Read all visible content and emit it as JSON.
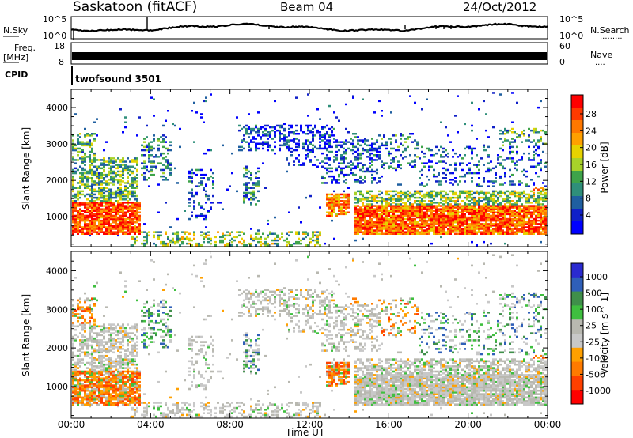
{
  "header": {
    "station": "Saskatoon (fitACF)",
    "beam": "Beam 04",
    "date": "24/Oct/2012"
  },
  "noise_panel": {
    "left_label": "N.Sky",
    "right_label": "N.Search",
    "right_dots": ".........",
    "left_ticks": [
      {
        "base": "10",
        "exp": "^5"
      },
      {
        "base": "10",
        "exp": "^0"
      }
    ],
    "right_ticks": [
      {
        "base": "10",
        "exp": "^5"
      },
      {
        "base": "10",
        "exp": "^0"
      }
    ]
  },
  "freq_panel": {
    "left_label_1": "Freq.",
    "left_label_2": "[MHz]",
    "right_label": "Nave",
    "right_dots": "....",
    "left_ticks": [
      "18",
      "8"
    ],
    "right_ticks": [
      "60",
      "0"
    ]
  },
  "cpid_panel": {
    "label": "CPID",
    "program": "twofsound 3501"
  },
  "chart_data": [
    {
      "type": "heatmap",
      "name": "Power",
      "ylabel": "Slant Range [km]",
      "xlabel": "Time UT",
      "ylim": [
        180,
        4500
      ],
      "yticks": [
        1000,
        2000,
        3000,
        4000
      ],
      "x_ticks": [
        "00:00",
        "04:00",
        "08:00",
        "12:00",
        "16:00",
        "20:00",
        "00:00"
      ],
      "colorbar": {
        "label": "Power [dB]",
        "ticks": [
          "28",
          "24",
          "20",
          "16",
          "12",
          "8",
          "4"
        ],
        "colors": [
          "#ff0000",
          "#ff3a00",
          "#ff7800",
          "#ffa000",
          "#e6d200",
          "#a8d22a",
          "#3ea34a",
          "#2f8f7a",
          "#1f5fa0",
          "#1020c8",
          "#0000ff"
        ]
      }
    },
    {
      "type": "heatmap",
      "name": "Velocity",
      "ylabel": "Slant Range [km]",
      "xlabel": "Time UT",
      "ylim": [
        180,
        4500
      ],
      "yticks": [
        1000,
        2000,
        3000,
        4000
      ],
      "x_ticks": [
        "00:00",
        "04:00",
        "08:00",
        "12:00",
        "16:00",
        "20:00",
        "00:00"
      ],
      "colorbar": {
        "label": "Velocity [m s^-1]",
        "ticks": [
          "1000",
          "500",
          "100",
          "25",
          "-25",
          "-100",
          "-500",
          "-1000"
        ],
        "colors": [
          "#2a2ad0",
          "#2f5fb8",
          "#3f8f4a",
          "#3fbf3f",
          "#b8b8b0",
          "#c8c8c8",
          "#ffa000",
          "#ff7a00",
          "#ff4000",
          "#ff0000"
        ]
      }
    }
  ],
  "time_axis": {
    "ticks": [
      "00:00",
      "04:00",
      "08:00",
      "12:00",
      "16:00",
      "20:00",
      "00:00"
    ],
    "label": "Time UT"
  }
}
